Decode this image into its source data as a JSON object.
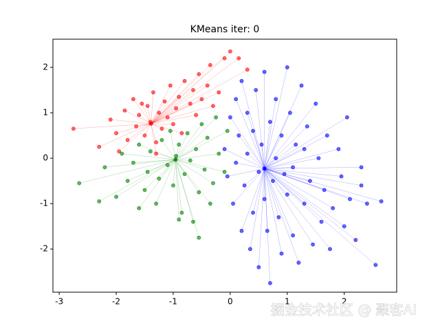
{
  "chart_data": {
    "type": "scatter",
    "title": "KMeans iter: 0",
    "xlim": [
      -3.11,
      2.92
    ],
    "ylim": [
      -2.95,
      2.62
    ],
    "xticks": [
      -3,
      -2,
      -1,
      0,
      1,
      2
    ],
    "yticks": [
      -2,
      -1,
      0,
      1,
      2
    ],
    "series": [
      {
        "color": "red",
        "centroid_x": -1.39,
        "centroid_y": 0.76,
        "x": [
          -2.75,
          -2.3,
          -2.1,
          -2.0,
          -1.95,
          -1.85,
          -1.8,
          -1.7,
          -1.65,
          -1.6,
          -1.5,
          -1.45,
          -1.4,
          -1.35,
          -1.3,
          -1.25,
          -1.2,
          -1.15,
          -1.1,
          -1.05,
          -1.0,
          -0.95,
          -0.9,
          -0.85,
          -0.8,
          -0.7,
          -0.65,
          -0.6,
          -0.55,
          -0.5,
          -0.4,
          -0.35,
          -0.3,
          -0.2,
          -0.1,
          0.0,
          0.15,
          0.3,
          -1.55,
          -1.3
        ],
        "y": [
          0.65,
          0.25,
          0.85,
          0.55,
          0.15,
          1.05,
          0.4,
          1.3,
          0.7,
          0.95,
          0.5,
          1.15,
          0.8,
          1.45,
          0.35,
          1.0,
          0.65,
          1.25,
          0.9,
          1.6,
          0.75,
          1.1,
          1.35,
          0.55,
          1.7,
          1.2,
          1.5,
          0.95,
          1.85,
          1.3,
          1.6,
          2.05,
          1.15,
          1.45,
          2.2,
          2.35,
          2.2,
          1.95,
          1.2,
          0.1
        ]
      },
      {
        "color": "green",
        "centroid_x": -0.96,
        "centroid_y": -0.03,
        "x": [
          -2.65,
          -2.3,
          -2.2,
          -2.0,
          -1.9,
          -1.8,
          -1.7,
          -1.6,
          -1.5,
          -1.45,
          -1.4,
          -1.3,
          -1.25,
          -1.2,
          -1.1,
          -1.05,
          -1.0,
          -0.95,
          -0.9,
          -0.85,
          -0.8,
          -0.75,
          -0.7,
          -0.65,
          -0.6,
          -0.55,
          -0.5,
          -0.45,
          -0.4,
          -0.3,
          -0.25,
          -0.2,
          -0.1,
          -0.05,
          -0.55,
          -1.6,
          -0.35,
          -0.9
        ],
        "y": [
          -0.55,
          -0.95,
          -0.2,
          -0.85,
          0.1,
          -0.5,
          -0.1,
          0.3,
          -0.7,
          -0.3,
          0.15,
          -1.0,
          -0.45,
          0.4,
          -0.15,
          0.6,
          -0.6,
          0.05,
          0.3,
          -1.2,
          -0.35,
          0.55,
          -0.05,
          -1.4,
          0.2,
          -0.75,
          0.75,
          -0.25,
          0.45,
          -0.55,
          0.9,
          0.1,
          -0.3,
          0.6,
          -1.75,
          -1.1,
          -1.0,
          -1.35
        ]
      },
      {
        "color": "blue",
        "centroid_x": 0.6,
        "centroid_y": -0.23,
        "x": [
          -0.1,
          -0.05,
          0.0,
          0.05,
          0.1,
          0.1,
          0.15,
          0.2,
          0.2,
          0.25,
          0.3,
          0.3,
          0.35,
          0.4,
          0.4,
          0.45,
          0.5,
          0.5,
          0.55,
          0.6,
          0.6,
          0.65,
          0.7,
          0.7,
          0.75,
          0.8,
          0.8,
          0.85,
          0.9,
          0.9,
          1.0,
          1.0,
          1.05,
          1.1,
          1.1,
          1.15,
          1.2,
          1.25,
          1.3,
          1.35,
          1.4,
          1.45,
          1.5,
          1.55,
          1.6,
          1.65,
          1.7,
          1.75,
          1.8,
          1.9,
          1.95,
          2.0,
          2.05,
          2.1,
          2.2,
          2.3,
          2.3,
          2.4,
          2.55,
          2.65,
          1.3,
          0.95
        ],
        "y": [
          0.2,
          -0.4,
          0.9,
          -1.0,
          1.3,
          -0.1,
          0.5,
          -1.6,
          1.7,
          -0.6,
          0.1,
          1.0,
          -2.0,
          -1.2,
          0.6,
          1.5,
          -0.3,
          -2.4,
          0.3,
          -0.9,
          1.9,
          -1.6,
          0.8,
          -2.75,
          -0.5,
          0.0,
          1.3,
          -1.3,
          -2.1,
          0.5,
          -0.8,
          2.0,
          1.0,
          -1.7,
          -0.2,
          0.3,
          -2.3,
          1.6,
          -1.0,
          0.7,
          -0.5,
          -1.9,
          1.2,
          0.0,
          -1.4,
          -0.7,
          0.5,
          -2.0,
          -1.1,
          0.2,
          -0.4,
          -1.5,
          0.9,
          -0.9,
          -1.8,
          -0.2,
          -0.6,
          -1.0,
          -2.35,
          -0.95,
          0.2,
          -0.35
        ]
      }
    ]
  },
  "watermark": "掘金技术社区 @ 聚客AI"
}
